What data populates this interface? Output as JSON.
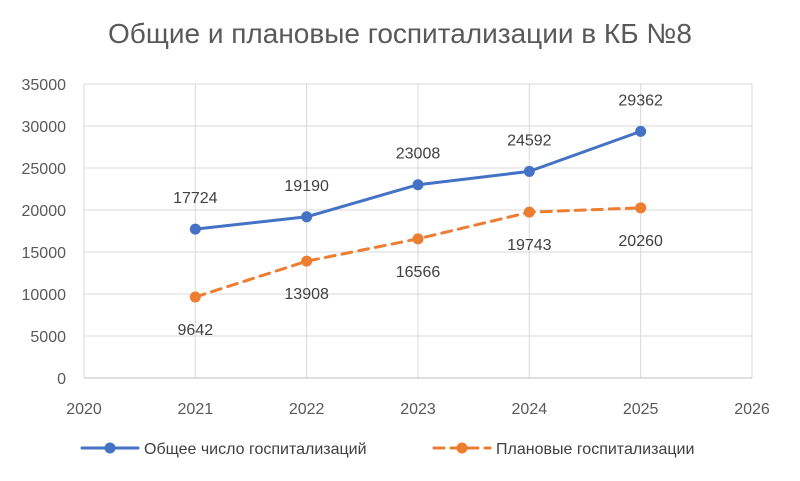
{
  "chart_data": {
    "type": "scatter",
    "title": "Общие и плановые госпитализации в КБ №8",
    "xlabel": "",
    "ylabel": "",
    "xlim": [
      2020,
      2026
    ],
    "ylim": [
      0,
      35000
    ],
    "x_ticks": [
      2020,
      2021,
      2022,
      2023,
      2024,
      2025,
      2026
    ],
    "y_ticks": [
      0,
      5000,
      10000,
      15000,
      20000,
      25000,
      30000,
      35000
    ],
    "grid": true,
    "legend_position": "bottom",
    "series": [
      {
        "name": "Общее число госпитализаций",
        "color": "#4472C4",
        "line_style": "solid",
        "x": [
          2021,
          2022,
          2023,
          2024,
          2025
        ],
        "values": [
          17724,
          19190,
          23008,
          24592,
          29362
        ],
        "labels": [
          "17724",
          "19190",
          "23008",
          "24592",
          "29362"
        ],
        "label_position": "above"
      },
      {
        "name": "Плановые госпитализации",
        "color": "#ED7D31",
        "line_style": "dashed",
        "x": [
          2021,
          2022,
          2023,
          2024,
          2025
        ],
        "values": [
          9642,
          13908,
          16566,
          19743,
          20260
        ],
        "labels": [
          "9642",
          "13908",
          "16566",
          "19743",
          "20260"
        ],
        "label_position": "below"
      }
    ]
  }
}
